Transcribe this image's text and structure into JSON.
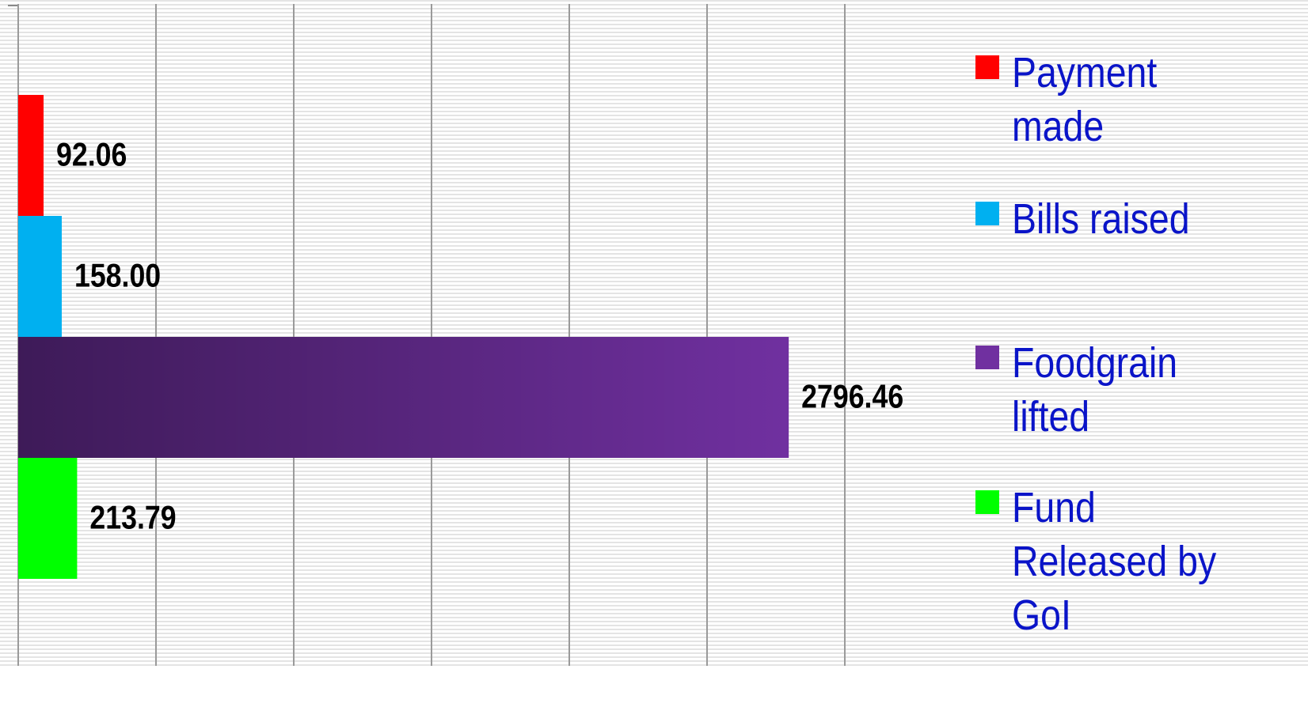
{
  "chart_data": {
    "type": "barh",
    "series": [
      {
        "name": "Payment made",
        "color": "#ff0000",
        "values": [
          92.06
        ]
      },
      {
        "name": "Bills raised",
        "color": "#00b0f0",
        "values": [
          158
        ],
        "value_labels": [
          "158.00"
        ]
      },
      {
        "name": "Foodgrain lifted",
        "color": "#7030a0",
        "values": [
          2796.46
        ],
        "gradient": true
      },
      {
        "name": "Fund Released by GoI",
        "color": "#00ff00",
        "values": [
          213.79
        ]
      }
    ],
    "xlim": [
      0,
      3000
    ],
    "xticks": [
      0,
      500,
      1000,
      1500,
      2000,
      2500,
      3000
    ],
    "grid": true,
    "legend": "right"
  }
}
